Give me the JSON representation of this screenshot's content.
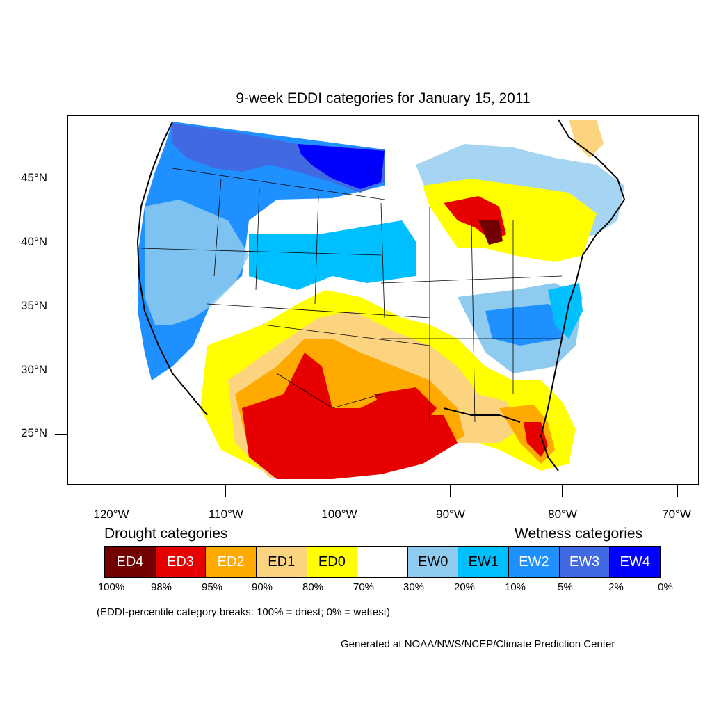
{
  "title": "9-week EDDI categories for January 15, 2011",
  "lat_labels": [
    "45°N",
    "40°N",
    "35°N",
    "30°N",
    "25°N"
  ],
  "lon_labels": [
    "120°W",
    "110°W",
    "100°W",
    "90°W",
    "80°W",
    "70°W"
  ],
  "legend": {
    "drought_heading": "Drought categories",
    "wetness_heading": "Wetness categories",
    "categories": [
      {
        "label": "ED4",
        "color": "#730000",
        "text_color": "#ffffff"
      },
      {
        "label": "ED3",
        "color": "#e60000",
        "text_color": "#ffffff"
      },
      {
        "label": "ED2",
        "color": "#ffaa00",
        "text_color": "#ffffff"
      },
      {
        "label": "ED1",
        "color": "#fcd37f",
        "text_color": "#000000"
      },
      {
        "label": "ED0",
        "color": "#ffff00",
        "text_color": "#000000"
      },
      {
        "label": "",
        "color": "#ffffff",
        "text_color": "#000000"
      },
      {
        "label": "EW0",
        "color": "#8ecbef",
        "text_color": "#000000"
      },
      {
        "label": "EW1",
        "color": "#00bfff",
        "text_color": "#000000"
      },
      {
        "label": "EW2",
        "color": "#1e90ff",
        "text_color": "#ffffff"
      },
      {
        "label": "EW3",
        "color": "#4169e1",
        "text_color": "#ffffff"
      },
      {
        "label": "EW4",
        "color": "#0000ff",
        "text_color": "#ffffff"
      }
    ],
    "percentiles": [
      "100%",
      "98%",
      "95%",
      "90%",
      "80%",
      "70%",
      "30%",
      "20%",
      "10%",
      "5%",
      "2%",
      "0%"
    ],
    "note": "(EDDI-percentile category breaks: 100% = driest; 0% = wettest)"
  },
  "credit": "Generated at NOAA/NWS/NCEP/Climate Prediction Center"
}
